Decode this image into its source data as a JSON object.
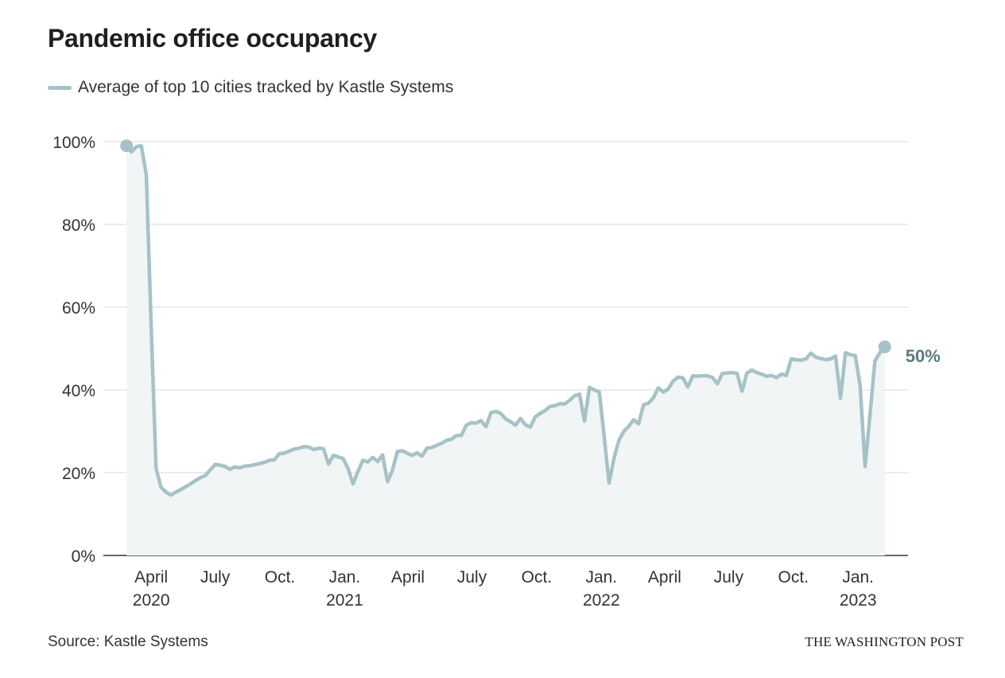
{
  "chart_data": {
    "type": "area",
    "title": "Pandemic office occupancy",
    "xlabel": "",
    "ylabel": "",
    "ylim": [
      0,
      100
    ],
    "yticks": [
      {
        "value": 0,
        "label": "0%"
      },
      {
        "value": 20,
        "label": "20%"
      },
      {
        "value": 40,
        "label": "40%"
      },
      {
        "value": 60,
        "label": "60%"
      },
      {
        "value": 80,
        "label": "80%"
      },
      {
        "value": 100,
        "label": "100%"
      }
    ],
    "xticks": [
      {
        "date": "2020-04-01",
        "label": "April",
        "year": "2020"
      },
      {
        "date": "2020-07-01",
        "label": "July",
        "year": ""
      },
      {
        "date": "2020-10-01",
        "label": "Oct.",
        "year": ""
      },
      {
        "date": "2021-01-01",
        "label": "Jan.",
        "year": "2021"
      },
      {
        "date": "2021-04-01",
        "label": "April",
        "year": ""
      },
      {
        "date": "2021-07-01",
        "label": "July",
        "year": ""
      },
      {
        "date": "2021-10-01",
        "label": "Oct.",
        "year": ""
      },
      {
        "date": "2022-01-01",
        "label": "Jan.",
        "year": "2022"
      },
      {
        "date": "2022-04-01",
        "label": "April",
        "year": ""
      },
      {
        "date": "2022-07-01",
        "label": "July",
        "year": ""
      },
      {
        "date": "2022-10-01",
        "label": "Oct.",
        "year": ""
      },
      {
        "date": "2023-01-01",
        "label": "Jan.",
        "year": "2023"
      }
    ],
    "grid": true,
    "legend_position": "top-left",
    "line_color": "#a6c2c7",
    "area_color": "#f1f5f6",
    "series": [
      {
        "name": "Average of top 10 cities tracked by Kastle Systems",
        "points": [
          [
            "2020-02-26",
            99
          ],
          [
            "2020-03-04",
            97.5
          ],
          [
            "2020-03-11",
            98.8
          ],
          [
            "2020-03-18",
            99
          ],
          [
            "2020-03-25",
            92
          ],
          [
            "2020-04-01",
            55
          ],
          [
            "2020-04-08",
            21
          ],
          [
            "2020-04-15",
            16.5
          ],
          [
            "2020-04-22",
            15.3
          ],
          [
            "2020-04-29",
            14.6
          ],
          [
            "2020-05-06",
            15.3
          ],
          [
            "2020-05-13",
            15.9
          ],
          [
            "2020-05-20",
            16.6
          ],
          [
            "2020-05-27",
            17.3
          ],
          [
            "2020-06-03",
            18.1
          ],
          [
            "2020-06-10",
            18.8
          ],
          [
            "2020-06-17",
            19.3
          ],
          [
            "2020-06-24",
            20.7
          ],
          [
            "2020-07-01",
            22
          ],
          [
            "2020-07-08",
            21.8
          ],
          [
            "2020-07-15",
            21.5
          ],
          [
            "2020-07-22",
            20.8
          ],
          [
            "2020-07-29",
            21.4
          ],
          [
            "2020-08-05",
            21.2
          ],
          [
            "2020-08-12",
            21.6
          ],
          [
            "2020-08-19",
            21.7
          ],
          [
            "2020-08-26",
            21.9
          ],
          [
            "2020-09-02",
            22.2
          ],
          [
            "2020-09-09",
            22.5
          ],
          [
            "2020-09-16",
            23.0
          ],
          [
            "2020-09-23",
            23.1
          ],
          [
            "2020-09-30",
            24.6
          ],
          [
            "2020-10-07",
            24.7
          ],
          [
            "2020-10-14",
            25.2
          ],
          [
            "2020-10-21",
            25.7
          ],
          [
            "2020-10-28",
            25.9
          ],
          [
            "2020-11-04",
            26.3
          ],
          [
            "2020-11-11",
            26.2
          ],
          [
            "2020-11-18",
            25.6
          ],
          [
            "2020-11-25",
            25.9
          ],
          [
            "2020-12-02",
            25.8
          ],
          [
            "2020-12-09",
            22.1
          ],
          [
            "2020-12-16",
            24.2
          ],
          [
            "2020-12-23",
            23.8
          ],
          [
            "2020-12-30",
            23.4
          ],
          [
            "2021-01-06",
            21
          ],
          [
            "2021-01-13",
            17.3
          ],
          [
            "2021-01-20",
            20.3
          ],
          [
            "2021-01-27",
            23.0
          ],
          [
            "2021-02-03",
            22.6
          ],
          [
            "2021-02-10",
            23.7
          ],
          [
            "2021-02-17",
            22.7
          ],
          [
            "2021-02-24",
            24.3
          ],
          [
            "2021-03-03",
            17.8
          ],
          [
            "2021-03-10",
            20.6
          ],
          [
            "2021-03-17",
            25.1
          ],
          [
            "2021-03-24",
            25.3
          ],
          [
            "2021-03-31",
            24.7
          ],
          [
            "2021-04-07",
            24.2
          ],
          [
            "2021-04-14",
            24.8
          ],
          [
            "2021-04-21",
            24.0
          ],
          [
            "2021-04-28",
            25.9
          ],
          [
            "2021-05-05",
            26.1
          ],
          [
            "2021-05-12",
            26.6
          ],
          [
            "2021-05-19",
            27.1
          ],
          [
            "2021-05-26",
            27.8
          ],
          [
            "2021-06-02",
            28.1
          ],
          [
            "2021-06-09",
            29.0
          ],
          [
            "2021-06-16",
            29.0
          ],
          [
            "2021-06-23",
            31.5
          ],
          [
            "2021-06-30",
            32.1
          ],
          [
            "2021-07-07",
            32.0
          ],
          [
            "2021-07-14",
            32.6
          ],
          [
            "2021-07-21",
            31.1
          ],
          [
            "2021-07-28",
            34.5
          ],
          [
            "2021-08-04",
            34.8
          ],
          [
            "2021-08-11",
            34.3
          ],
          [
            "2021-08-18",
            33.0
          ],
          [
            "2021-08-25",
            32.3
          ],
          [
            "2021-09-01",
            31.5
          ],
          [
            "2021-09-08",
            33.1
          ],
          [
            "2021-09-15",
            31.6
          ],
          [
            "2021-09-22",
            31.0
          ],
          [
            "2021-09-29",
            33.5
          ],
          [
            "2021-10-06",
            34.3
          ],
          [
            "2021-10-13",
            35.0
          ],
          [
            "2021-10-20",
            36.0
          ],
          [
            "2021-10-27",
            36.2
          ],
          [
            "2021-11-03",
            36.7
          ],
          [
            "2021-11-10",
            36.6
          ],
          [
            "2021-11-17",
            37.5
          ],
          [
            "2021-11-24",
            38.6
          ],
          [
            "2021-12-01",
            39
          ],
          [
            "2021-12-08",
            32.5
          ],
          [
            "2021-12-15",
            40.6
          ],
          [
            "2021-12-22",
            40
          ],
          [
            "2021-12-29",
            39.5
          ],
          [
            "2022-01-05",
            29
          ],
          [
            "2022-01-12",
            17.5
          ],
          [
            "2022-01-19",
            23.5
          ],
          [
            "2022-01-26",
            27.8
          ],
          [
            "2022-02-02",
            30.0
          ],
          [
            "2022-02-09",
            31.2
          ],
          [
            "2022-02-16",
            32.8
          ],
          [
            "2022-02-23",
            31.8
          ],
          [
            "2022-03-02",
            36.4
          ],
          [
            "2022-03-09",
            36.8
          ],
          [
            "2022-03-16",
            38.1
          ],
          [
            "2022-03-23",
            40.5
          ],
          [
            "2022-03-30",
            39.5
          ],
          [
            "2022-04-06",
            40.2
          ],
          [
            "2022-04-13",
            42.1
          ],
          [
            "2022-04-20",
            43.1
          ],
          [
            "2022-04-27",
            42.9
          ],
          [
            "2022-05-04",
            40.7
          ],
          [
            "2022-05-11",
            43.4
          ],
          [
            "2022-05-18",
            43.3
          ],
          [
            "2022-05-25",
            43.4
          ],
          [
            "2022-06-01",
            43.4
          ],
          [
            "2022-06-08",
            43.0
          ],
          [
            "2022-06-15",
            41.5
          ],
          [
            "2022-06-22",
            44.0
          ],
          [
            "2022-06-29",
            44.1
          ],
          [
            "2022-07-06",
            44.2
          ],
          [
            "2022-07-13",
            44.0
          ],
          [
            "2022-07-20",
            39.7
          ],
          [
            "2022-07-27",
            44.1
          ],
          [
            "2022-08-03",
            44.8
          ],
          [
            "2022-08-10",
            44.2
          ],
          [
            "2022-08-17",
            43.8
          ],
          [
            "2022-08-24",
            43.3
          ],
          [
            "2022-08-31",
            43.5
          ],
          [
            "2022-09-07",
            43.0
          ],
          [
            "2022-09-14",
            43.8
          ],
          [
            "2022-09-21",
            43.5
          ],
          [
            "2022-09-28",
            47.5
          ],
          [
            "2022-10-05",
            47.3
          ],
          [
            "2022-10-12",
            47.2
          ],
          [
            "2022-10-19",
            47.5
          ],
          [
            "2022-10-26",
            48.9
          ],
          [
            "2022-11-02",
            47.9
          ],
          [
            "2022-11-09",
            47.6
          ],
          [
            "2022-11-16",
            47.3
          ],
          [
            "2022-11-23",
            47.5
          ],
          [
            "2022-11-30",
            48.2
          ],
          [
            "2022-12-07",
            38
          ],
          [
            "2022-12-14",
            49.0
          ],
          [
            "2022-12-21",
            48.5
          ],
          [
            "2022-12-28",
            48.3
          ],
          [
            "2023-01-04",
            41
          ],
          [
            "2023-01-11",
            21.5
          ],
          [
            "2023-01-18",
            34
          ],
          [
            "2023-01-25",
            47
          ],
          [
            "2023-02-01",
            49
          ],
          [
            "2023-02-08",
            50.4
          ]
        ]
      }
    ],
    "end_label": "50%"
  },
  "header": {
    "title": "Pandemic office occupancy",
    "legend_label": "Average of top 10 cities tracked by Kastle Systems"
  },
  "footer": {
    "source": "Source: Kastle Systems",
    "credit": "THE WASHINGTON POST"
  }
}
